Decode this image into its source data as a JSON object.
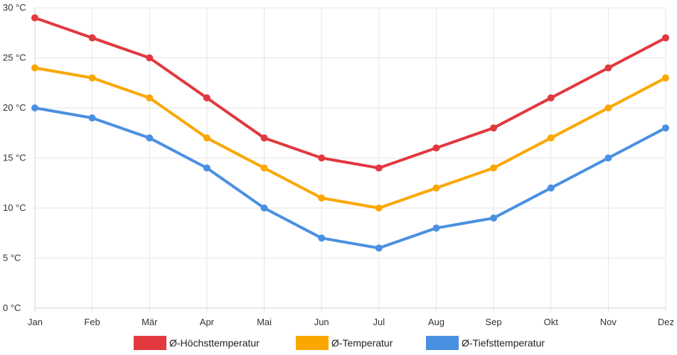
{
  "chart_data": {
    "type": "line",
    "categories": [
      "Jan",
      "Feb",
      "Mär",
      "Apr",
      "Mai",
      "Jun",
      "Jul",
      "Aug",
      "Sep",
      "Okt",
      "Nov",
      "Dez"
    ],
    "ylim": [
      0,
      30
    ],
    "y_ticks": [
      0,
      5,
      10,
      15,
      20,
      25,
      30
    ],
    "y_tick_labels": [
      "0 °C",
      "5 °C",
      "10 °C",
      "15 °C",
      "20 °C",
      "25 °C",
      "30 °C"
    ],
    "grid": true,
    "legend_position": "bottom",
    "series": [
      {
        "name": "Ø-Höchsttemperatur",
        "color": "#e2383f",
        "values": [
          29,
          27,
          25,
          21,
          17,
          15,
          14,
          16,
          18,
          21,
          24,
          27
        ]
      },
      {
        "name": "Ø-Temperatur",
        "color": "#fba701",
        "values": [
          24,
          23,
          21,
          17,
          14,
          11,
          10,
          12,
          14,
          17,
          20,
          23
        ]
      },
      {
        "name": "Ø-Tiefsttemperatur",
        "color": "#4a90e2",
        "values": [
          20,
          19,
          17,
          14,
          10,
          7,
          6,
          8,
          9,
          12,
          15,
          18
        ]
      }
    ]
  }
}
